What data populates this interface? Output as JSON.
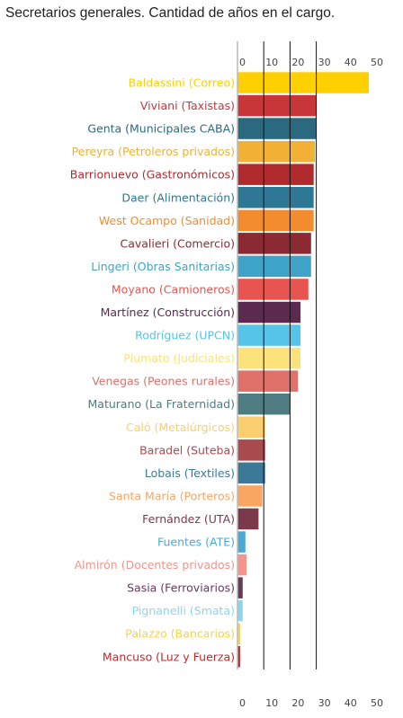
{
  "title": "Secretarios generales. Cantidad de años en el cargo.",
  "chart_data": {
    "type": "bar",
    "orientation": "horizontal",
    "xlim": [
      0,
      50
    ],
    "ticks": [
      "0",
      "10",
      "20",
      "30",
      "40",
      "50"
    ],
    "tick_values": [
      0,
      10,
      20,
      30,
      40,
      50
    ],
    "gridlines": [
      10,
      20,
      30
    ],
    "rows": [
      {
        "label": "Baldassini (Correo)",
        "value": 50,
        "color": "#FFD000"
      },
      {
        "label": "Viviani (Taxistas)",
        "value": 30,
        "color": "#C8363A"
      },
      {
        "label": "Genta (Municipales CABA)",
        "value": 30,
        "color": "#2B6A7E"
      },
      {
        "label": "Pereyra (Petroleros privados)",
        "value": 29.5,
        "color": "#F2B134"
      },
      {
        "label": "Barrionuevo (Gastronómicos)",
        "value": 29,
        "color": "#B12A2E"
      },
      {
        "label": "Daer (Alimentación)",
        "value": 29,
        "color": "#2E7896"
      },
      {
        "label": "West Ocampo (Sanidad)",
        "value": 29,
        "color": "#F28C2E"
      },
      {
        "label": "Cavalieri (Comercio)",
        "value": 28,
        "color": "#8B2A33"
      },
      {
        "label": "Lingeri (Obras Sanitarias)",
        "value": 28,
        "color": "#3FA3C9"
      },
      {
        "label": "Moyano (Camioneros)",
        "value": 27,
        "color": "#E85450"
      },
      {
        "label": "Martínez (Construcción)",
        "value": 24,
        "color": "#5B2A4E"
      },
      {
        "label": "Rodríguez (UPCN)",
        "value": 24,
        "color": "#55C4E8"
      },
      {
        "label": "Plumato (Judiciales)",
        "value": 24,
        "color": "#FCE27A"
      },
      {
        "label": "Venegas (Peones rurales)",
        "value": 23,
        "color": "#E0706A"
      },
      {
        "label": "Maturano (La Fraternidad)",
        "value": 20,
        "color": "#4E7C80"
      },
      {
        "label": "Caló (Metalúrgicos)",
        "value": 10.5,
        "color": "#FBCF6F"
      },
      {
        "label": "Baradel (Suteba)",
        "value": 10.5,
        "color": "#A84A4E"
      },
      {
        "label": "Lobais (Textiles)",
        "value": 10.5,
        "color": "#3C7898"
      },
      {
        "label": "Santa María (Porteros)",
        "value": 9.5,
        "color": "#FAA663"
      },
      {
        "label": "Fernández (UTA)",
        "value": 8,
        "color": "#7A3A4C"
      },
      {
        "label": "Fuentes (ATE)",
        "value": 3,
        "color": "#4BA9D3"
      },
      {
        "label": "Almirón (Docentes privados)",
        "value": 3.5,
        "color": "#F4948C"
      },
      {
        "label": "Sasia (Ferroviarios)",
        "value": 2,
        "color": "#6A3A5A"
      },
      {
        "label": "Pignanelli (Smata)",
        "value": 2,
        "color": "#8CD6F0"
      },
      {
        "label": "Palazzo (Bancarios)",
        "value": 1,
        "color": "#F7D34A"
      },
      {
        "label": "Mancuso (Luz y Fuerza)",
        "value": 1,
        "color": "#C0282C"
      }
    ]
  }
}
